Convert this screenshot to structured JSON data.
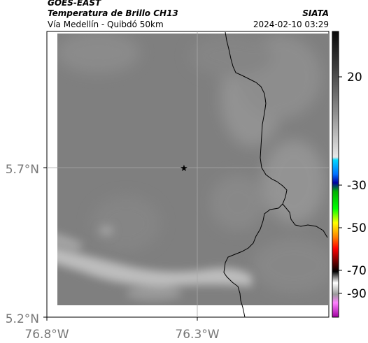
{
  "header": {
    "satellite": "GOES-EAST",
    "product": "Temperatura de Brillo CH13",
    "region": "Vía Medellín - Quibdó 50km",
    "agency": "SIATA",
    "datetime": "2024-02-10 03:29"
  },
  "map": {
    "lat_labels": [
      "5.7°N",
      "5.2°N"
    ],
    "lon_labels": [
      "76.8°W",
      "76.3°W"
    ],
    "marker": "star-icon"
  },
  "colorbar": {
    "ticks": [
      "20",
      "-30",
      "-50",
      "-70",
      "-90"
    ]
  },
  "colors": {
    "background": "#7f7f7f",
    "cloud": "#bcbcbc",
    "border": "#000000"
  }
}
